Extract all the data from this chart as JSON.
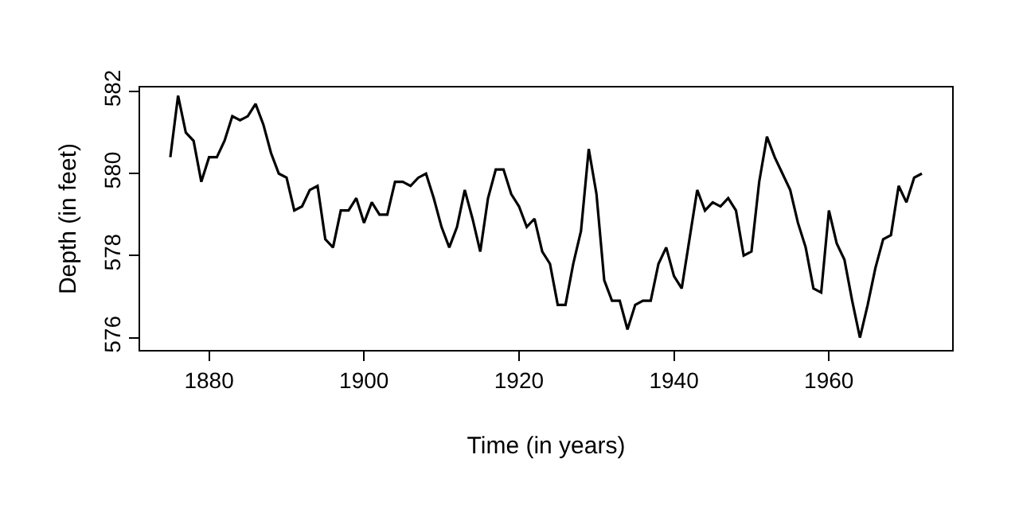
{
  "chart_data": {
    "type": "line",
    "xlabel": "Time (in years)",
    "ylabel": "Depth (in feet)",
    "x": [
      1875,
      1876,
      1877,
      1878,
      1879,
      1880,
      1881,
      1882,
      1883,
      1884,
      1885,
      1886,
      1887,
      1888,
      1889,
      1890,
      1891,
      1892,
      1893,
      1894,
      1895,
      1896,
      1897,
      1898,
      1899,
      1900,
      1901,
      1902,
      1903,
      1904,
      1905,
      1906,
      1907,
      1908,
      1909,
      1910,
      1911,
      1912,
      1913,
      1914,
      1915,
      1916,
      1917,
      1918,
      1919,
      1920,
      1921,
      1922,
      1923,
      1924,
      1925,
      1926,
      1927,
      1928,
      1929,
      1930,
      1931,
      1932,
      1933,
      1934,
      1935,
      1936,
      1937,
      1938,
      1939,
      1940,
      1941,
      1942,
      1943,
      1944,
      1945,
      1946,
      1947,
      1948,
      1949,
      1950,
      1951,
      1952,
      1953,
      1954,
      1955,
      1956,
      1957,
      1958,
      1959,
      1960,
      1961,
      1962,
      1963,
      1964,
      1965,
      1966,
      1967,
      1968,
      1969,
      1970,
      1971,
      1972
    ],
    "series": [
      {
        "color": "#000000",
        "values": [
          580.4,
          581.9,
          581.0,
          580.8,
          579.8,
          580.4,
          580.4,
          580.8,
          581.4,
          581.3,
          581.4,
          581.7,
          581.2,
          580.5,
          580.0,
          579.9,
          579.1,
          579.2,
          579.6,
          579.7,
          578.4,
          578.2,
          579.1,
          579.1,
          579.4,
          578.8,
          579.3,
          579.0,
          579.0,
          579.8,
          579.8,
          579.7,
          579.9,
          580.0,
          579.4,
          578.7,
          578.2,
          578.7,
          579.6,
          578.9,
          578.1,
          579.4,
          580.1,
          580.1,
          579.5,
          579.2,
          578.7,
          578.9,
          578.1,
          577.8,
          576.8,
          576.8,
          577.8,
          578.6,
          580.6,
          579.5,
          577.4,
          576.9,
          576.9,
          576.2,
          576.8,
          576.9,
          576.9,
          577.8,
          578.2,
          577.5,
          577.2,
          578.4,
          579.6,
          579.1,
          579.3,
          579.2,
          579.4,
          579.1,
          578.0,
          578.1,
          579.8,
          580.9,
          580.4,
          580.0,
          579.6,
          578.8,
          578.2,
          577.2,
          577.1,
          579.1,
          578.3,
          577.9,
          576.9,
          576.0,
          576.8,
          577.7,
          578.4,
          578.5,
          579.7,
          579.3,
          579.9,
          580.0
        ]
      }
    ],
    "xlim": [
      1871.1,
      1975.9
    ],
    "xticks": [
      1880,
      1900,
      1920,
      1940,
      1960
    ],
    "ylim": [
      575.7,
      582.1
    ],
    "yticks": [
      576,
      578,
      580,
      582
    ],
    "grid": false,
    "marker": "none",
    "line_style": "solid"
  }
}
